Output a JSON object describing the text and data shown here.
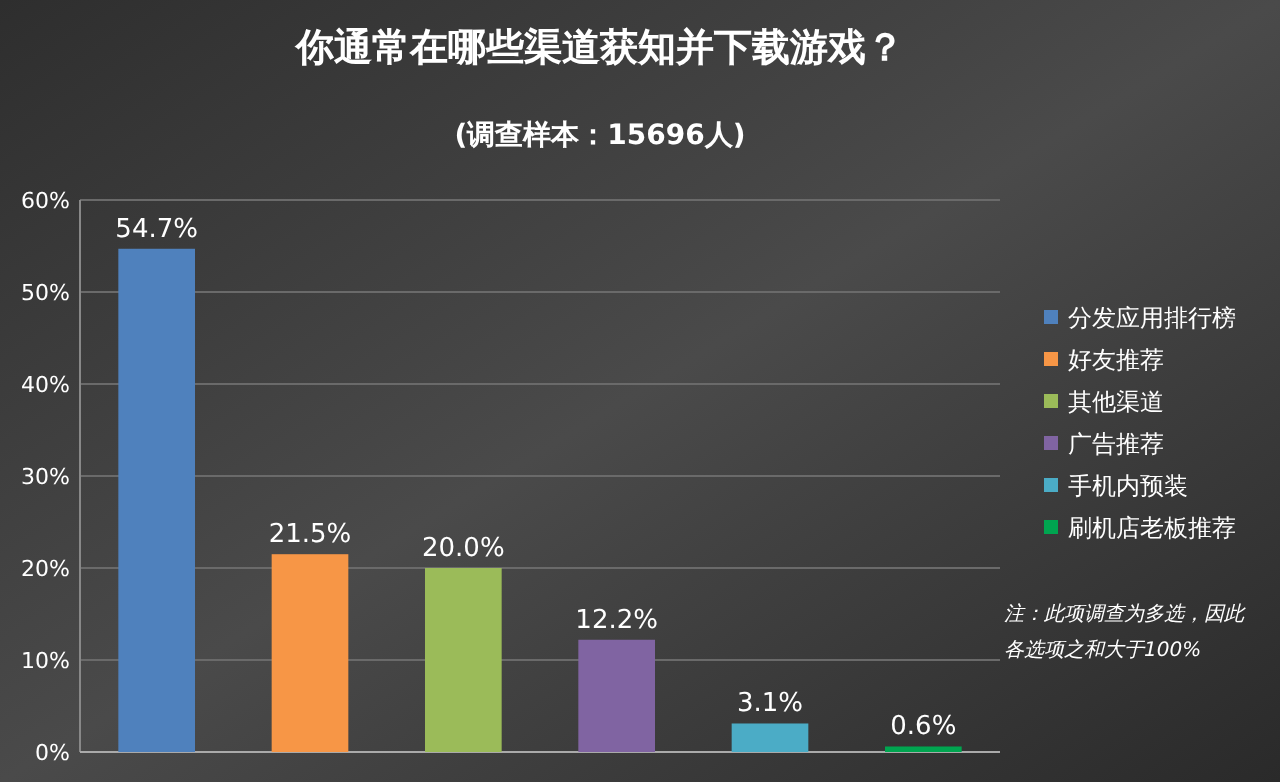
{
  "chart_data": {
    "type": "bar",
    "title": "你通常在哪些渠道获知并下载游戏？",
    "subtitle": "(调查样本：15696人)",
    "categories": [
      null,
      null,
      null,
      null,
      null,
      null
    ],
    "series": [
      {
        "name": "分发应用排行榜",
        "color": "#4f81bd",
        "values": [
          54.7,
          null,
          null,
          null,
          null,
          null
        ]
      },
      {
        "name": "好友推荐",
        "color": "#f79646",
        "values": [
          null,
          21.5,
          null,
          null,
          null,
          null
        ]
      },
      {
        "name": "其他渠道",
        "color": "#9bbb59",
        "values": [
          null,
          null,
          20.0,
          null,
          null,
          null
        ]
      },
      {
        "name": "广告推荐",
        "color": "#8064a2",
        "values": [
          null,
          null,
          null,
          12.2,
          null,
          null
        ]
      },
      {
        "name": "手机内预装",
        "color": "#4bacc6",
        "values": [
          null,
          null,
          null,
          null,
          3.1,
          null
        ]
      },
      {
        "name": "刷机店老板推荐",
        "color": "#00a550",
        "values": [
          null,
          null,
          null,
          null,
          null,
          0.6
        ]
      }
    ],
    "value_labels": [
      "54.7%",
      "21.5%",
      "20.0%",
      "12.2%",
      "3.1%",
      "0.6%"
    ],
    "ylim": [
      0,
      60
    ],
    "yticks": [
      {
        "value": 0,
        "label": "0%"
      },
      {
        "value": 10,
        "label": "10%"
      },
      {
        "value": 20,
        "label": "20%"
      },
      {
        "value": 30,
        "label": "30%"
      },
      {
        "value": 40,
        "label": "40%"
      },
      {
        "value": 50,
        "label": "50%"
      },
      {
        "value": 60,
        "label": "60%"
      }
    ],
    "grid": "y",
    "legend": "right",
    "annotations": [
      "注：此项调查为多选，因此各选项之和大于100%"
    ]
  }
}
